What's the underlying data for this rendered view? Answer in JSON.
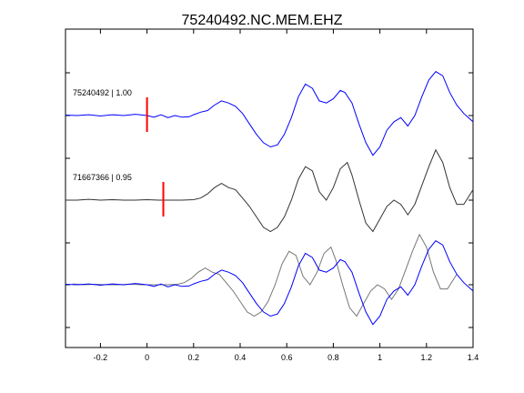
{
  "chart_data": {
    "type": "line",
    "title": "75240492.NC.MEM.EHZ",
    "xlabel": "",
    "ylabel": "",
    "xlim": [
      -0.35,
      1.4
    ],
    "x_ticks": [
      -0.2,
      0,
      0.2,
      0.4,
      0.6,
      0.8,
      1,
      1.2,
      1.4
    ],
    "x_tick_labels": [
      "-0.2",
      "0",
      "0.2",
      "0.4",
      "0.6",
      "0.8",
      "1",
      "1.2",
      "1.4"
    ],
    "grid": false,
    "traces": [
      {
        "label": "75240492 | 1.00",
        "baseline": 1,
        "pick": 0.0,
        "color": "#0000ff",
        "points": [
          [
            -0.35,
            0.01
          ],
          [
            -0.3,
            0.0
          ],
          [
            -0.25,
            0.02
          ],
          [
            -0.2,
            -0.01
          ],
          [
            -0.15,
            0.02
          ],
          [
            -0.1,
            0.0
          ],
          [
            -0.05,
            0.03
          ],
          [
            0.0,
            0.0
          ],
          [
            0.03,
            -0.04
          ],
          [
            0.06,
            0.02
          ],
          [
            0.09,
            -0.05
          ],
          [
            0.12,
            0.0
          ],
          [
            0.15,
            -0.04
          ],
          [
            0.18,
            -0.03
          ],
          [
            0.2,
            0.02
          ],
          [
            0.23,
            0.08
          ],
          [
            0.26,
            0.12
          ],
          [
            0.29,
            0.25
          ],
          [
            0.32,
            0.35
          ],
          [
            0.35,
            0.3
          ],
          [
            0.38,
            0.22
          ],
          [
            0.41,
            0.05
          ],
          [
            0.44,
            -0.2
          ],
          [
            0.47,
            -0.45
          ],
          [
            0.5,
            -0.65
          ],
          [
            0.53,
            -0.75
          ],
          [
            0.56,
            -0.7
          ],
          [
            0.59,
            -0.45
          ],
          [
            0.62,
            -0.05
          ],
          [
            0.65,
            0.45
          ],
          [
            0.68,
            0.75
          ],
          [
            0.71,
            0.65
          ],
          [
            0.74,
            0.35
          ],
          [
            0.77,
            0.3
          ],
          [
            0.8,
            0.4
          ],
          [
            0.83,
            0.6
          ],
          [
            0.85,
            0.55
          ],
          [
            0.88,
            0.3
          ],
          [
            0.91,
            -0.2
          ],
          [
            0.94,
            -0.65
          ],
          [
            0.97,
            -0.95
          ],
          [
            1.0,
            -0.75
          ],
          [
            1.03,
            -0.35
          ],
          [
            1.06,
            -0.15
          ],
          [
            1.09,
            -0.05
          ],
          [
            1.12,
            -0.25
          ],
          [
            1.15,
            0.0
          ],
          [
            1.18,
            0.45
          ],
          [
            1.21,
            0.85
          ],
          [
            1.24,
            1.05
          ],
          [
            1.27,
            0.95
          ],
          [
            1.3,
            0.55
          ],
          [
            1.33,
            0.25
          ],
          [
            1.36,
            0.05
          ],
          [
            1.4,
            -0.15
          ]
        ]
      },
      {
        "label": "71667366 | 0.95",
        "baseline": 2,
        "pick": 0.07,
        "color": "#333333",
        "points": [
          [
            -0.35,
            0.0
          ],
          [
            -0.3,
            0.0
          ],
          [
            -0.25,
            0.02
          ],
          [
            -0.2,
            0.0
          ],
          [
            -0.15,
            0.01
          ],
          [
            -0.1,
            0.0
          ],
          [
            -0.05,
            0.0
          ],
          [
            0.0,
            0.01
          ],
          [
            0.05,
            0.0
          ],
          [
            0.1,
            0.0
          ],
          [
            0.15,
            0.0
          ],
          [
            0.2,
            0.01
          ],
          [
            0.23,
            0.05
          ],
          [
            0.26,
            0.15
          ],
          [
            0.29,
            0.3
          ],
          [
            0.32,
            0.4
          ],
          [
            0.35,
            0.3
          ],
          [
            0.38,
            0.25
          ],
          [
            0.41,
            0.05
          ],
          [
            0.44,
            -0.15
          ],
          [
            0.47,
            -0.4
          ],
          [
            0.5,
            -0.65
          ],
          [
            0.53,
            -0.75
          ],
          [
            0.56,
            -0.65
          ],
          [
            0.59,
            -0.4
          ],
          [
            0.62,
            0.0
          ],
          [
            0.65,
            0.5
          ],
          [
            0.68,
            0.8
          ],
          [
            0.71,
            0.7
          ],
          [
            0.74,
            0.2
          ],
          [
            0.77,
            0.0
          ],
          [
            0.8,
            0.3
          ],
          [
            0.83,
            0.75
          ],
          [
            0.86,
            0.9
          ],
          [
            0.88,
            0.6
          ],
          [
            0.91,
            0.0
          ],
          [
            0.94,
            -0.55
          ],
          [
            0.97,
            -0.75
          ],
          [
            1.0,
            -0.45
          ],
          [
            1.03,
            -0.15
          ],
          [
            1.06,
            0.0
          ],
          [
            1.09,
            -0.1
          ],
          [
            1.12,
            -0.35
          ],
          [
            1.15,
            -0.1
          ],
          [
            1.18,
            0.35
          ],
          [
            1.21,
            0.8
          ],
          [
            1.24,
            1.2
          ],
          [
            1.27,
            0.9
          ],
          [
            1.3,
            0.3
          ],
          [
            1.33,
            -0.1
          ],
          [
            1.36,
            -0.1
          ],
          [
            1.4,
            0.25
          ]
        ]
      }
    ]
  }
}
